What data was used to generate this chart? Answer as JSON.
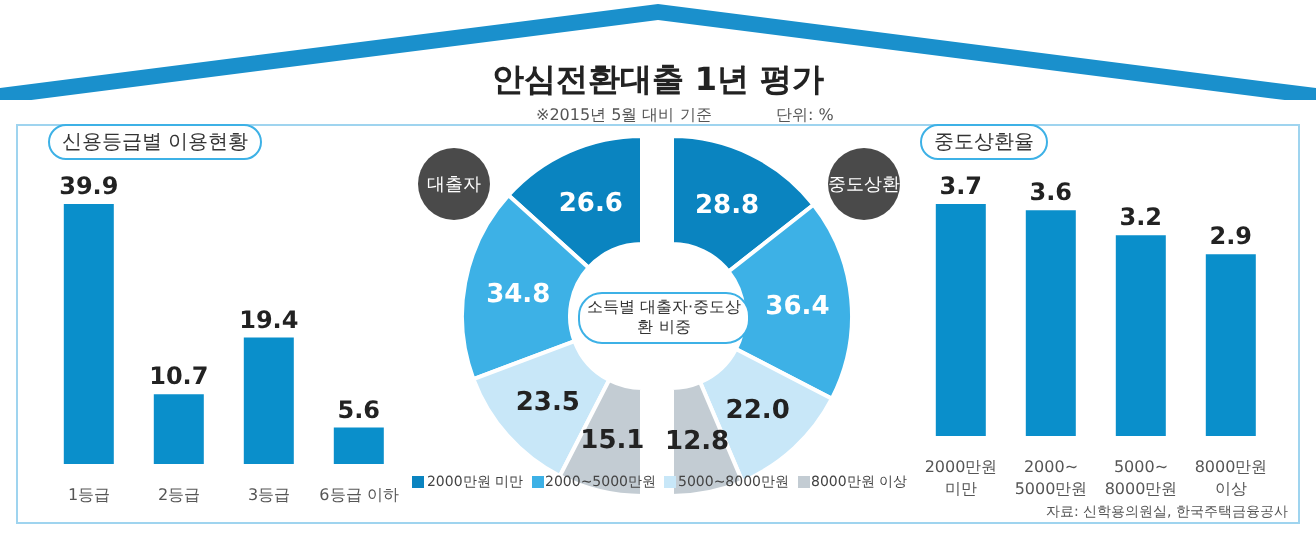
{
  "chart_data": [
    {
      "type": "bar",
      "title": "신용등급별 이용현황",
      "categories": [
        "1등급",
        "2등급",
        "3등급",
        "6등급 이하"
      ],
      "values": [
        39.9,
        10.7,
        19.4,
        5.6
      ],
      "color": "#0a8fcb",
      "data_labels": true
    },
    {
      "type": "donut",
      "title": "안심전환대출 1년 평가",
      "subtitle": "※2015년 5월 대비 기준",
      "annotations": [
        "단위: %",
        "소득별 대출자·중도상환 비중"
      ],
      "categories": [
        "2000만원 미만",
        "2000~5000만원",
        "5000~8000만원",
        "8000만원 이상"
      ],
      "series": [
        {
          "name": "대출자",
          "values": [
            26.6,
            34.8,
            23.5,
            15.1
          ],
          "value_labels": [
            "26.6",
            "34.8",
            "23.5",
            "15.1"
          ]
        }
      ],
      "colors": [
        "#0a84c0",
        "#3db1e6",
        "#c8e7f8",
        "#c3ccd3"
      ],
      "legend": "bottom"
    },
    {
      "type": "donut",
      "series": [
        {
          "name": "중도상환",
          "values": [
            28.8,
            36.4,
            22.0,
            12.8
          ],
          "value_labels": [
            "28.8",
            "36.4",
            "22.0",
            "12.8"
          ]
        }
      ],
      "colors": [
        "#0a84c0",
        "#3db1e6",
        "#c8e7f8",
        "#c3ccd3"
      ]
    },
    {
      "type": "bar",
      "title": "중도상환율",
      "categories": [
        "2000만원 미만",
        "2000~5000만원",
        "5000~8000만원",
        "8000만원 이상"
      ],
      "values": [
        3.7,
        3.6,
        3.2,
        2.9
      ],
      "color": "#0a8fcb",
      "data_labels": true,
      "annotations": [
        "자료: 신학용의원실, 한국주택금융공사"
      ]
    }
  ]
}
